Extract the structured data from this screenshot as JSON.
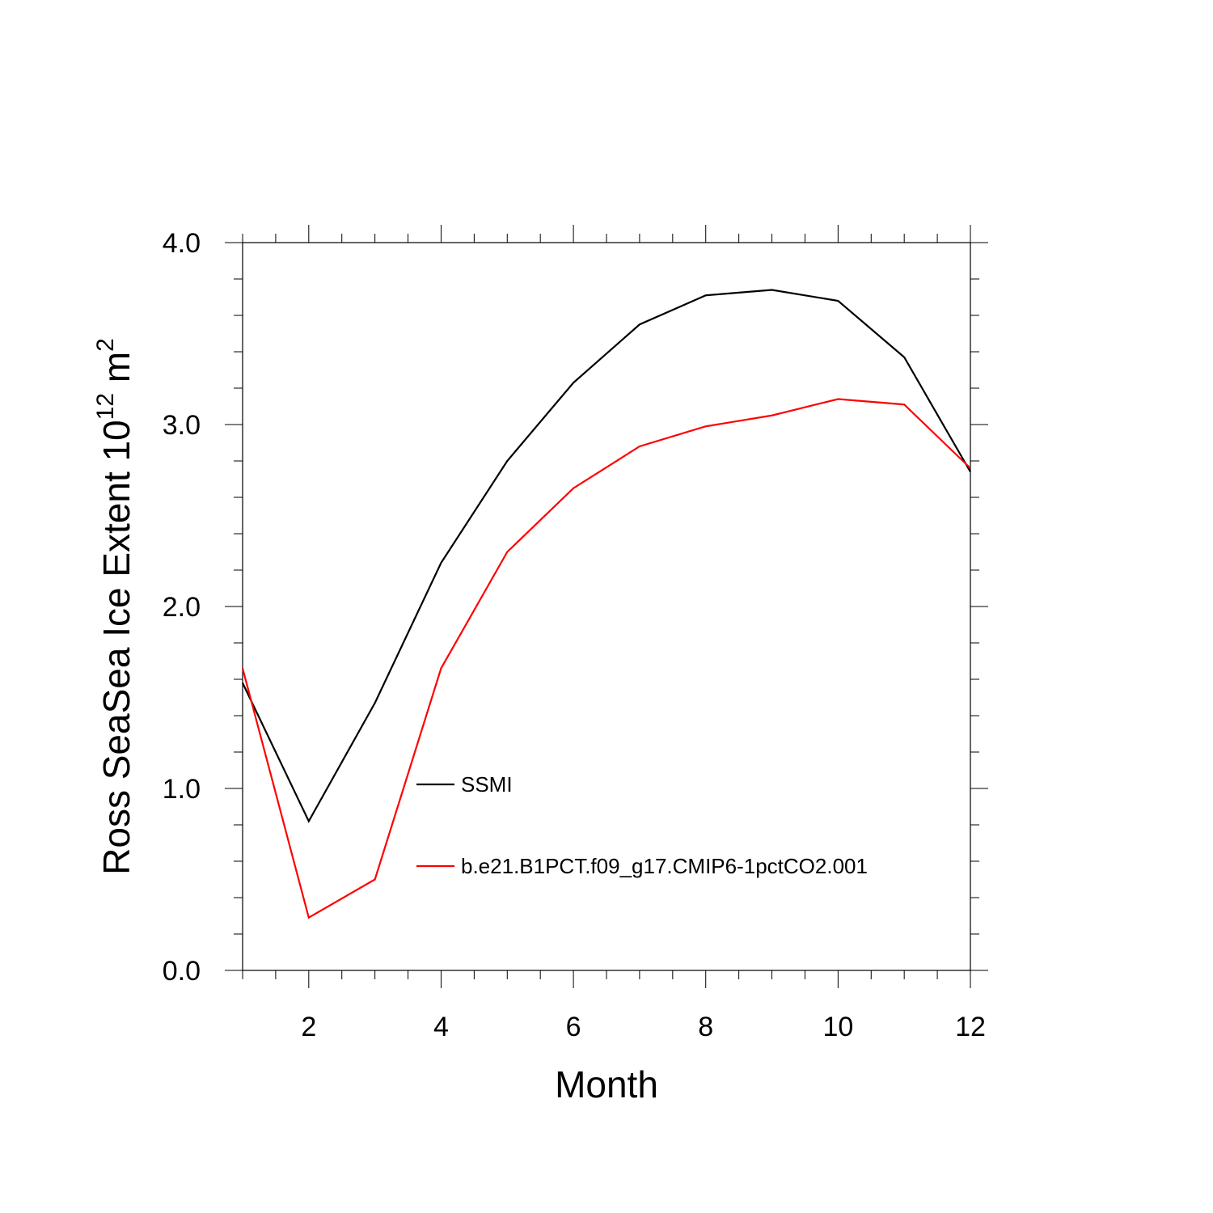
{
  "chart_data": {
    "type": "line",
    "title": "",
    "xlabel": "Month",
    "ylabel": {
      "base": "Ross SeaSea Ice Extent 10",
      "superscript": "12",
      "unit": " m",
      "unit_superscript": "2"
    },
    "xlim": [
      1,
      12
    ],
    "ylim": [
      0,
      4
    ],
    "x_ticks": [
      2,
      4,
      6,
      8,
      10,
      12
    ],
    "x_tick_labels": [
      "2",
      "4",
      "6",
      "8",
      "10",
      "12"
    ],
    "y_ticks": [
      0,
      1,
      2,
      3,
      4
    ],
    "y_tick_labels": [
      "0.0",
      "1.0",
      "2.0",
      "3.0",
      "4.0"
    ],
    "x": [
      1,
      2,
      3,
      4,
      5,
      6,
      7,
      8,
      9,
      10,
      11,
      12
    ],
    "series": [
      {
        "name": "SSMI",
        "color": "#000000",
        "values": [
          1.58,
          0.82,
          1.47,
          2.24,
          2.8,
          3.23,
          3.55,
          3.71,
          3.74,
          3.68,
          3.37,
          2.74
        ]
      },
      {
        "name": "b.e21.B1PCT.f09_g17.CMIP6-1pctCO2.001",
        "color": "#ff0000",
        "values": [
          1.66,
          0.29,
          0.5,
          1.66,
          2.3,
          2.65,
          2.88,
          2.99,
          3.05,
          3.14,
          3.11,
          2.76
        ]
      }
    ],
    "grid": false,
    "legend_position": "center-left"
  }
}
